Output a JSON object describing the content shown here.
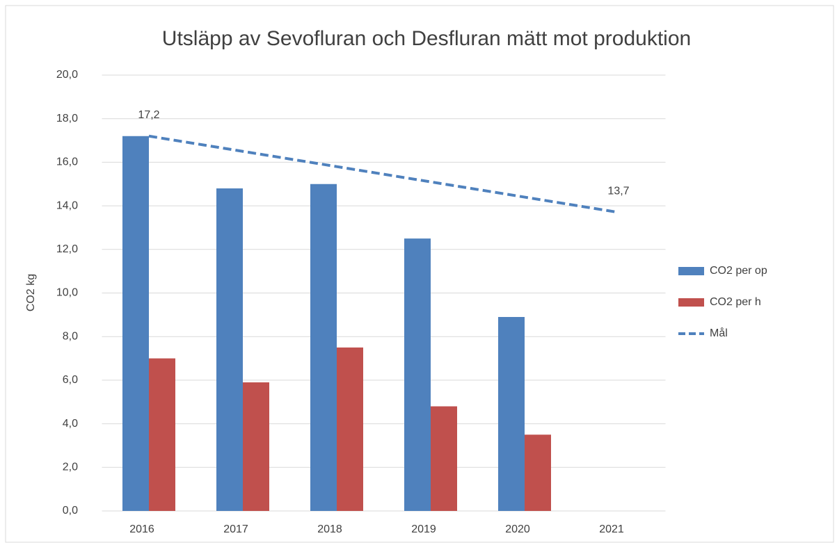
{
  "chart_data": {
    "type": "bar",
    "title": "Utsläpp av Sevofluran och Desfluran mätt mot produktion",
    "y_label": "CO2 kg",
    "categories": [
      "2016",
      "2017",
      "2018",
      "2019",
      "2020",
      "2021"
    ],
    "series": [
      {
        "name": "CO2 per op",
        "type": "bar",
        "color": "#4f81bd",
        "values": [
          17.2,
          14.8,
          15.0,
          12.5,
          8.9,
          null
        ]
      },
      {
        "name": "CO2 per h",
        "type": "bar",
        "color": "#c0504d",
        "values": [
          7.0,
          5.9,
          7.5,
          4.8,
          3.5,
          null
        ]
      },
      {
        "name": "Mål",
        "type": "line",
        "dashed": true,
        "color": "#4f81bd",
        "values": [
          17.2,
          16.5,
          15.8,
          15.1,
          14.4,
          13.7
        ],
        "value_labels": [
          "17,2",
          null,
          null,
          null,
          null,
          "13,7"
        ]
      }
    ],
    "ylim": [
      0,
      20
    ],
    "yticks": [
      {
        "value": 0,
        "label": "0,0"
      },
      {
        "value": 2,
        "label": "2,0"
      },
      {
        "value": 4,
        "label": "4,0"
      },
      {
        "value": 6,
        "label": "6,0"
      },
      {
        "value": 8,
        "label": "8,0"
      },
      {
        "value": 10,
        "label": "10,0"
      },
      {
        "value": 12,
        "label": "12,0"
      },
      {
        "value": 14,
        "label": "14,0"
      },
      {
        "value": 16,
        "label": "16,0"
      },
      {
        "value": 18,
        "label": "18,0"
      },
      {
        "value": 20,
        "label": "20,0"
      }
    ],
    "grid": true,
    "legend": "right"
  }
}
